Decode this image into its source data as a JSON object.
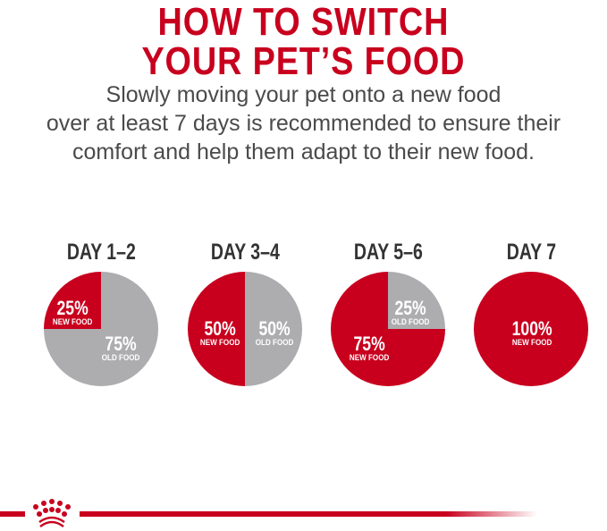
{
  "title": {
    "line1": "HOW TO SWITCH",
    "line2": "YOUR PET’S FOOD"
  },
  "intro": {
    "lines": [
      "Slowly moving your pet onto a new food",
      "over at least 7 days is recommended to ensure their",
      "comfort and help them adapt to their new food."
    ]
  },
  "colors": {
    "new_food": "#c8001e",
    "old_food": "#adadb0",
    "title": "#c8001e"
  },
  "steps": [
    {
      "day": "DAY 1–2",
      "new_pct": 25,
      "new_label": "25%",
      "new_text": "NEW FOOD",
      "old_label": "75%",
      "old_text": "OLD FOOD"
    },
    {
      "day": "DAY 3–4",
      "new_pct": 50,
      "new_label": "50%",
      "new_text": "NEW FOOD",
      "old_label": "50%",
      "old_text": "OLD FOOD"
    },
    {
      "day": "DAY 5–6",
      "new_pct": 75,
      "new_label": "75%",
      "new_text": "NEW FOOD",
      "old_label": "25%",
      "old_text": "OLD FOOD"
    },
    {
      "day": "DAY 7",
      "new_pct": 100,
      "new_label": "100%",
      "new_text": "NEW FOOD"
    }
  ],
  "footer": {
    "logo": "Royal Canin crown"
  }
}
